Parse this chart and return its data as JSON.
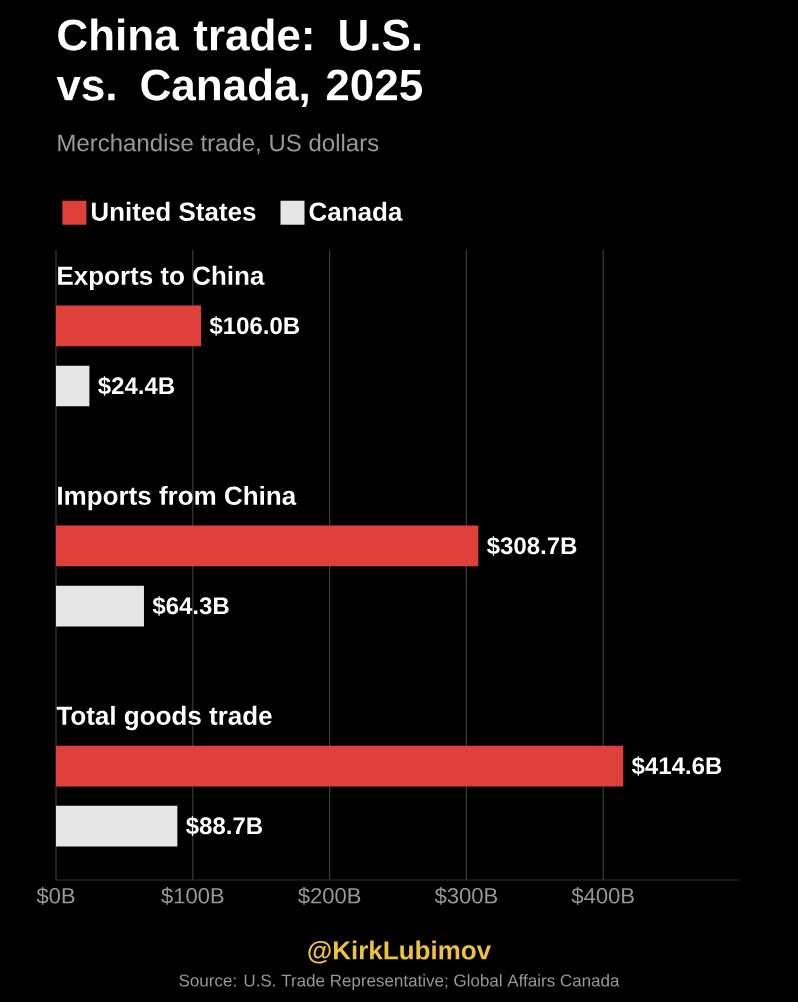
{
  "chart_data": {
    "type": "bar",
    "orientation": "horizontal",
    "title": "China trade: U.S. vs. Canada, 2025",
    "subtitle": "Merchandise trade, US dollars",
    "categories": [
      "Exports to China",
      "Imports from China",
      "Total goods trade"
    ],
    "series": [
      {
        "name": "United States",
        "color": "#e0403c",
        "values": [
          106.0,
          308.7,
          414.6
        ],
        "value_labels": [
          "$106.0B",
          "$308.7B",
          "$414.6B"
        ]
      },
      {
        "name": "Canada",
        "color": "#e6e6e6",
        "values": [
          24.4,
          64.3,
          88.7
        ],
        "value_labels": [
          "$24.4B",
          "$64.3B",
          "$88.7B"
        ]
      }
    ],
    "xlim": [
      0,
      500
    ],
    "xticks": [
      {
        "value": 0,
        "label": "$0B"
      },
      {
        "value": 100,
        "label": "$100B"
      },
      {
        "value": 200,
        "label": "$200B"
      },
      {
        "value": 300,
        "label": "$300B"
      },
      {
        "value": 400,
        "label": "$400B"
      }
    ],
    "grid": "x",
    "legend": "top left",
    "annotations": [
      "@KirkLubimov",
      "Source: U.S. Trade Representative; Global Affairs Canada"
    ]
  }
}
